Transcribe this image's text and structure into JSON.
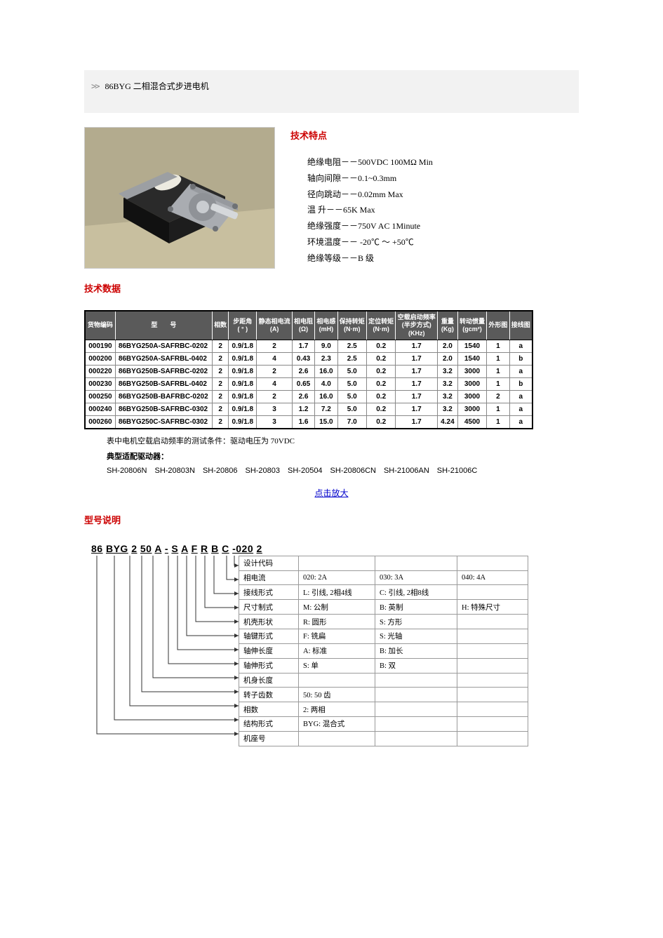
{
  "page": {
    "title": "86BYG 二相混合式步进电机",
    "chevron": ">>"
  },
  "photo": {
    "bg": "#b0a88a",
    "table": "#cbc1a1",
    "body": "#1b1b1b",
    "plate": "#b8bbc0",
    "shaft": "#cfd2d5"
  },
  "features": {
    "heading": "技术特点",
    "items": [
      "绝缘电阻－－500VDC 100MΩ  Min",
      "轴向间隙－－0.1~0.3mm",
      "径向跳动－－0.02mm Max",
      "温 升－－65K Max",
      "绝缘强度－－750V AC 1Minute",
      "环境温度－－ -20℃ ～ +50℃",
      "绝缘等级－－B 级"
    ]
  },
  "data_heading": "技术数据",
  "table": {
    "header_bg": "#5a5a5a",
    "headers": [
      "货物编码",
      "型　　号",
      "相数",
      "步距角 ( ° )",
      "静态相电流 (A)",
      "相电阻 (Ω)",
      "相电感 (mH)",
      "保持转矩 (N·m)",
      "定位转矩 (N·m)",
      "空载启动频率 (半步方式) (KHz)",
      "重量 (Kg)",
      "转动惯量 (gcm²)",
      "外形图",
      "接线图"
    ],
    "rows": [
      [
        "000190",
        "86BYG250A-SAFRBC-0202",
        "2",
        "0.9/1.8",
        "2",
        "1.7",
        "9.0",
        "2.5",
        "0.2",
        "1.7",
        "2.0",
        "1540",
        "1",
        "a"
      ],
      [
        "000200",
        "86BYG250A-SAFRBL-0402",
        "2",
        "0.9/1.8",
        "4",
        "0.43",
        "2.3",
        "2.5",
        "0.2",
        "1.7",
        "2.0",
        "1540",
        "1",
        "b"
      ],
      [
        "000220",
        "86BYG250B-SAFRBC-0202",
        "2",
        "0.9/1.8",
        "2",
        "2.6",
        "16.0",
        "5.0",
        "0.2",
        "1.7",
        "3.2",
        "3000",
        "1",
        "a"
      ],
      [
        "000230",
        "86BYG250B-SAFRBL-0402",
        "2",
        "0.9/1.8",
        "4",
        "0.65",
        "4.0",
        "5.0",
        "0.2",
        "1.7",
        "3.2",
        "3000",
        "1",
        "b"
      ],
      [
        "000250",
        "86BYG250B-BAFRBC-0202",
        "2",
        "0.9/1.8",
        "2",
        "2.6",
        "16.0",
        "5.0",
        "0.2",
        "1.7",
        "3.2",
        "3000",
        "2",
        "a"
      ],
      [
        "000240",
        "86BYG250B-SAFRBC-0302",
        "2",
        "0.9/1.8",
        "3",
        "1.2",
        "7.2",
        "5.0",
        "0.2",
        "1.7",
        "3.2",
        "3000",
        "1",
        "a"
      ],
      [
        "000260",
        "86BYG250C-SAFRBC-0302",
        "2",
        "0.9/1.8",
        "3",
        "1.6",
        "15.0",
        "7.0",
        "0.2",
        "1.7",
        "4.24",
        "4500",
        "1",
        "a"
      ]
    ],
    "note": "表中电机空载启动频率的测试条件：驱动电压为 70VDC",
    "driver_label": "典型适配驱动器：",
    "drivers": "SH-20806N　SH-20803N　SH-20806　SH-20803　SH-20504　SH-20806CN　SH-21006AN　SH-21006C"
  },
  "zoom": "点击放大",
  "model": {
    "heading": "型号说明",
    "code_parts": [
      "86",
      "BYG",
      "2",
      "50",
      "A",
      "-",
      "S",
      "A",
      "F",
      "R",
      "B",
      "C",
      "-020",
      "2"
    ],
    "rows": [
      {
        "label": "设计代码",
        "v": [
          "",
          "",
          ""
        ]
      },
      {
        "label": "相电流",
        "v": [
          "020: 2A",
          "030: 3A",
          "040: 4A"
        ]
      },
      {
        "label": "接线形式",
        "v": [
          "L: 引线, 2相4线",
          "C: 引线, 2相8线",
          ""
        ]
      },
      {
        "label": "尺寸制式",
        "v": [
          "M: 公制",
          "B: 英制",
          "H: 特殊尺寸"
        ]
      },
      {
        "label": "机壳形状",
        "v": [
          "R: 圆形",
          "S: 方形",
          ""
        ]
      },
      {
        "label": "轴键形式",
        "v": [
          "F: 铣扁",
          "S: 光轴",
          ""
        ]
      },
      {
        "label": "轴伸长度",
        "v": [
          "A: 标准",
          "B: 加长",
          ""
        ]
      },
      {
        "label": "轴伸形式",
        "v": [
          "S: 单",
          "B: 双",
          ""
        ]
      },
      {
        "label": "机身长度",
        "v": [
          "",
          "",
          ""
        ]
      },
      {
        "label": "转子齿数",
        "v": [
          "50: 50 齿",
          "",
          ""
        ]
      },
      {
        "label": "相数",
        "v": [
          "2: 两相",
          "",
          ""
        ]
      },
      {
        "label": "结构形式",
        "v": [
          "BYG: 混合式",
          "",
          ""
        ]
      },
      {
        "label": "机座号",
        "v": [
          "",
          "",
          ""
        ]
      }
    ]
  }
}
